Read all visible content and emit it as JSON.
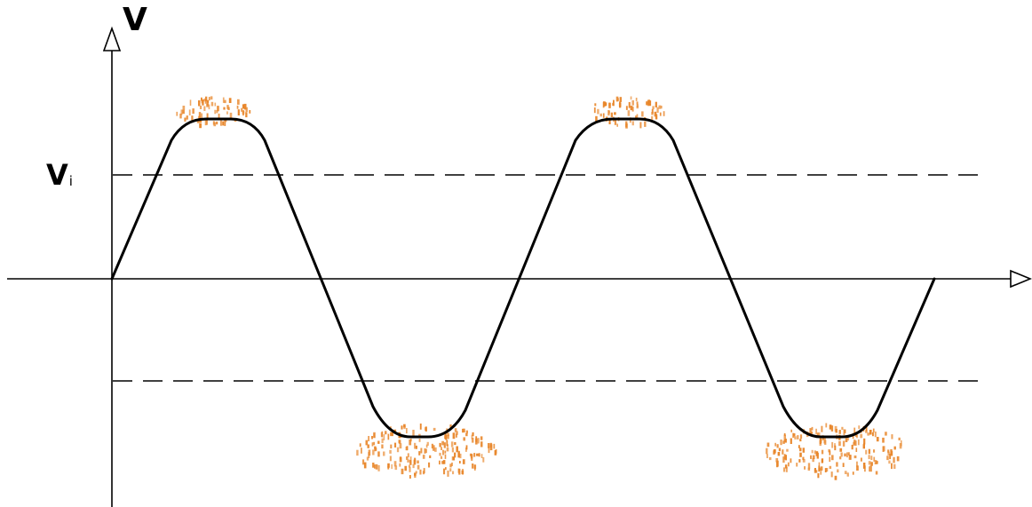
{
  "labels": {
    "y_axis": "V",
    "threshold_main": "V",
    "threshold_sub": "i"
  },
  "colors": {
    "ink": "#000000",
    "sparks": "#e8862a",
    "background": "#ffffff"
  },
  "icons": {
    "y_arrow": "open-triangle-arrow-up-icon",
    "x_arrow": "open-triangle-arrow-right-icon"
  }
}
